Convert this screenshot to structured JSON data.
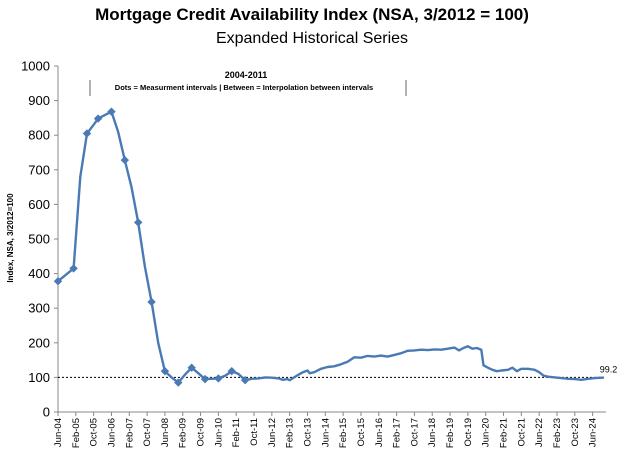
{
  "chart_data": {
    "type": "line",
    "title": "Mortgage Credit Availability Index (NSA, 3/2012 = 100)",
    "subtitle": "Expanded Historical Series",
    "ylabel": "Index, NSA, 3/2012=100",
    "xlabel": "",
    "ylim": [
      0,
      1000
    ],
    "yticks": [
      0,
      100,
      200,
      300,
      400,
      500,
      600,
      700,
      800,
      900,
      1000
    ],
    "xrange": [
      "Jun-04",
      "Dec-24"
    ],
    "x_tick_labels": [
      "Jun-04",
      "Feb-05",
      "Oct-05",
      "Jun-06",
      "Feb-07",
      "Oct-07",
      "Jun-08",
      "Feb-09",
      "Oct-09",
      "Jun-10",
      "Feb-11",
      "Oct-11",
      "Jun-12",
      "Feb-13",
      "Oct-13",
      "Jun-14",
      "Feb-15",
      "Oct-15",
      "Jun-16",
      "Feb-17",
      "Oct-17",
      "Jun-18",
      "Feb-19",
      "Oct-19",
      "Jun-20",
      "Feb-21",
      "Oct-21",
      "Jun-22",
      "Feb-23",
      "Oct-23",
      "Jun-24"
    ],
    "annotation_title": "2004-2011",
    "annotation_note": "Dots = Measurment intervals  |  Between = Interpolation between intervals",
    "reference_line": 100,
    "end_label": "99.2",
    "series": [
      {
        "color": "#4a7ab5",
        "markers": [
          [
            "Jun-04",
            378
          ],
          [
            "Jan-05",
            415
          ],
          [
            "Jul-05",
            805
          ],
          [
            "Dec-05",
            848
          ],
          [
            "Jun-06",
            868
          ],
          [
            "Dec-06",
            728
          ],
          [
            "Jun-07",
            548
          ],
          [
            "Dec-07",
            318
          ],
          [
            "Jun-08",
            118
          ],
          [
            "Dec-08",
            85
          ],
          [
            "Jun-09",
            128
          ],
          [
            "Dec-09",
            95
          ],
          [
            "Jun-10",
            97
          ],
          [
            "Dec-10",
            118
          ],
          [
            "Jun-11",
            92
          ]
        ],
        "values": [
          [
            "Jun-04",
            378
          ],
          [
            "Jan-05",
            415
          ],
          [
            "Apr-05",
            680
          ],
          [
            "Jul-05",
            805
          ],
          [
            "Oct-05",
            830
          ],
          [
            "Dec-05",
            848
          ],
          [
            "Mar-06",
            858
          ],
          [
            "Jun-06",
            868
          ],
          [
            "Sep-06",
            810
          ],
          [
            "Dec-06",
            728
          ],
          [
            "Mar-07",
            650
          ],
          [
            "Jun-07",
            548
          ],
          [
            "Sep-07",
            420
          ],
          [
            "Dec-07",
            318
          ],
          [
            "Mar-08",
            200
          ],
          [
            "Jun-08",
            118
          ],
          [
            "Sep-08",
            100
          ],
          [
            "Dec-08",
            85
          ],
          [
            "Mar-09",
            108
          ],
          [
            "Jun-09",
            128
          ],
          [
            "Sep-09",
            112
          ],
          [
            "Dec-09",
            95
          ],
          [
            "Mar-10",
            96
          ],
          [
            "Jun-10",
            97
          ],
          [
            "Sep-10",
            105
          ],
          [
            "Dec-10",
            118
          ],
          [
            "Mar-11",
            110
          ],
          [
            "Jun-11",
            92
          ],
          [
            "Sep-11",
            96
          ],
          [
            "Dec-11",
            97
          ],
          [
            "Mar-12",
            100
          ],
          [
            "Jun-12",
            99
          ],
          [
            "Sep-12",
            97
          ],
          [
            "Nov-12",
            93
          ],
          [
            "Jan-13",
            95
          ],
          [
            "Feb-13",
            92
          ],
          [
            "Apr-13",
            100
          ],
          [
            "Jun-13",
            108
          ],
          [
            "Aug-13",
            115
          ],
          [
            "Oct-13",
            120
          ],
          [
            "Nov-13",
            112
          ],
          [
            "Jan-14",
            115
          ],
          [
            "Apr-14",
            125
          ],
          [
            "Jul-14",
            130
          ],
          [
            "Oct-14",
            132
          ],
          [
            "Jan-15",
            138
          ],
          [
            "Apr-15",
            145
          ],
          [
            "Jul-15",
            158
          ],
          [
            "Oct-15",
            157
          ],
          [
            "Jan-16",
            162
          ],
          [
            "Apr-16",
            160
          ],
          [
            "Jul-16",
            163
          ],
          [
            "Oct-16",
            160
          ],
          [
            "Jan-17",
            165
          ],
          [
            "Apr-17",
            170
          ],
          [
            "Jul-17",
            177
          ],
          [
            "Oct-17",
            178
          ],
          [
            "Jan-18",
            180
          ],
          [
            "Apr-18",
            179
          ],
          [
            "Jul-18",
            181
          ],
          [
            "Oct-18",
            180
          ],
          [
            "Jan-19",
            183
          ],
          [
            "Apr-19",
            186
          ],
          [
            "Jun-19",
            178
          ],
          [
            "Aug-19",
            185
          ],
          [
            "Oct-19",
            190
          ],
          [
            "Dec-19",
            183
          ],
          [
            "Feb-20",
            185
          ],
          [
            "Apr-20",
            180
          ],
          [
            "May-20",
            135
          ],
          [
            "Jul-20",
            128
          ],
          [
            "Sep-20",
            122
          ],
          [
            "Nov-20",
            118
          ],
          [
            "Jan-21",
            120
          ],
          [
            "Apr-21",
            122
          ],
          [
            "Jun-21",
            128
          ],
          [
            "Aug-21",
            118
          ],
          [
            "Oct-21",
            125
          ],
          [
            "Jan-22",
            125
          ],
          [
            "Apr-22",
            122
          ],
          [
            "Jun-22",
            115
          ],
          [
            "Aug-22",
            105
          ],
          [
            "Oct-22",
            102
          ],
          [
            "Jan-23",
            100
          ],
          [
            "Apr-23",
            98
          ],
          [
            "Jul-23",
            96
          ],
          [
            "Oct-23",
            95
          ],
          [
            "Jan-24",
            93
          ],
          [
            "Apr-24",
            96
          ],
          [
            "Jul-24",
            98
          ],
          [
            "Oct-24",
            99
          ],
          [
            "Nov-24",
            99.2
          ]
        ]
      }
    ]
  }
}
